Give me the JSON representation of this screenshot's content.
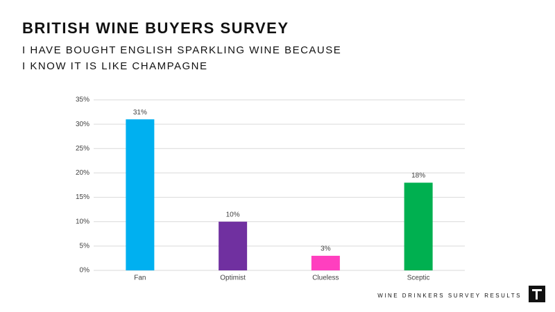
{
  "chart_data": {
    "type": "bar",
    "title": "BRITISH WINE BUYERS SURVEY",
    "subtitle": [
      "I HAVE BOUGHT ENGLISH SPARKLING WINE BECAUSE",
      "I KNOW IT IS LIKE CHAMPAGNE"
    ],
    "categories": [
      "Fan",
      "Optimist",
      "Clueless",
      "Sceptic"
    ],
    "values": [
      31,
      10,
      3,
      18
    ],
    "value_labels": [
      "31%",
      "10%",
      "3%",
      "18%"
    ],
    "colors": [
      "#00b0f0",
      "#7030a0",
      "#ff3fbf",
      "#00b050"
    ],
    "ylim": [
      0,
      35
    ],
    "yticks": [
      {
        "value": 0,
        "label": "0%"
      },
      {
        "value": 5,
        "label": "5%"
      },
      {
        "value": 10,
        "label": "10%"
      },
      {
        "value": 15,
        "label": "15%"
      },
      {
        "value": 20,
        "label": "20%"
      },
      {
        "value": 25,
        "label": "25%"
      },
      {
        "value": 30,
        "label": "30%"
      },
      {
        "value": 35,
        "label": "35%"
      }
    ],
    "grid": true,
    "footer": "WINE DRINKERS SURVEY RESULTS"
  }
}
